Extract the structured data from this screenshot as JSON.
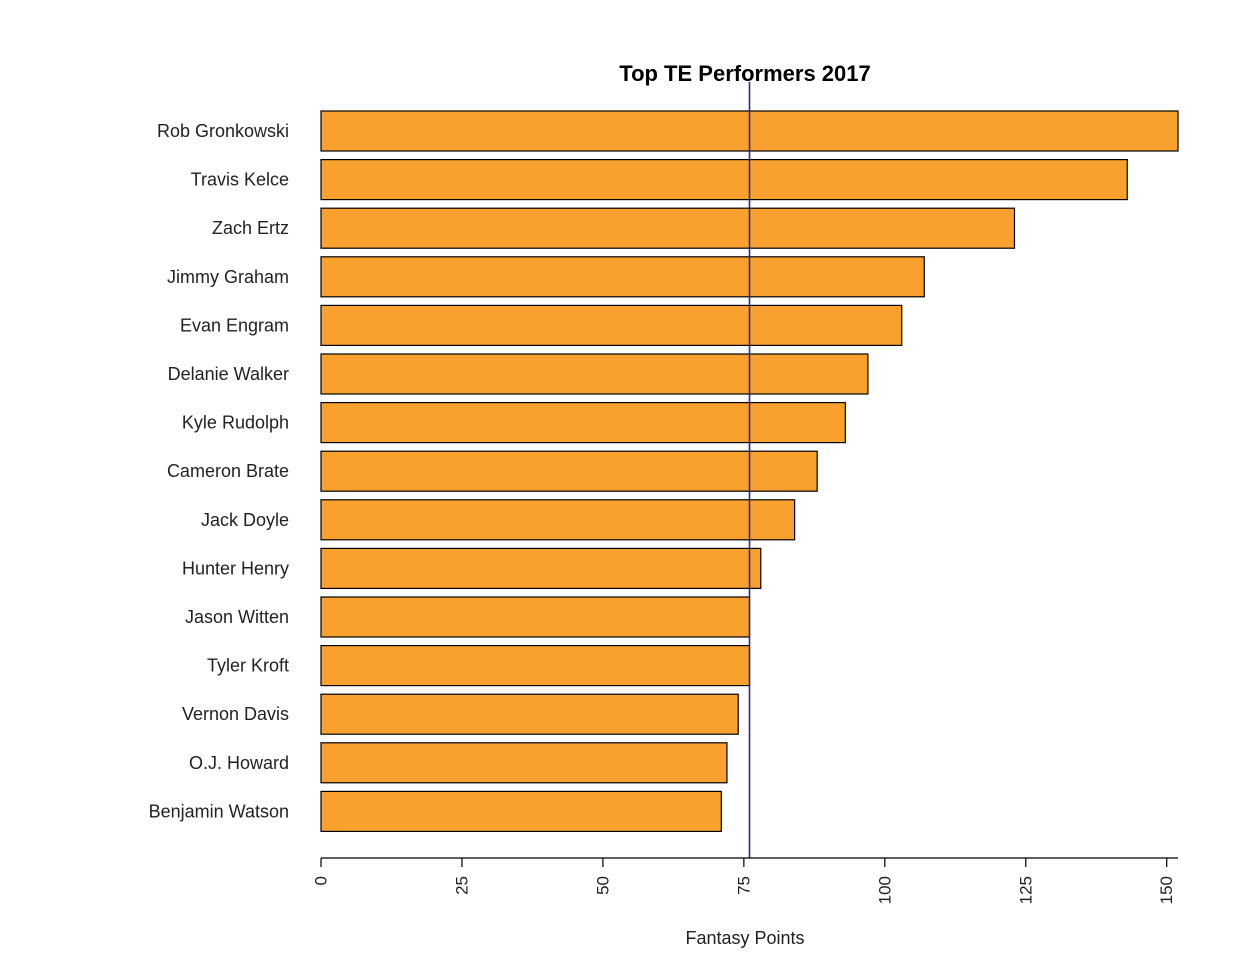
{
  "chart_data": {
    "type": "bar",
    "orientation": "horizontal",
    "title": "Top TE Performers 2017",
    "xlabel": "Fantasy Points",
    "ylabel": "",
    "categories": [
      "Rob Gronkowski",
      "Travis Kelce",
      "Zach Ertz",
      "Jimmy Graham",
      "Evan Engram",
      "Delanie Walker",
      "Kyle Rudolph",
      "Cameron Brate",
      "Jack Doyle",
      "Hunter Henry",
      "Jason Witten",
      "Tyler Kroft",
      "Vernon Davis",
      "O.J. Howard",
      "Benjamin Watson"
    ],
    "values": [
      152,
      143,
      123,
      107,
      103,
      97,
      93,
      88,
      84,
      78,
      76,
      76,
      74,
      72,
      71
    ],
    "xlim": [
      0,
      152
    ],
    "xticks": [
      0,
      25,
      50,
      75,
      100,
      125,
      150
    ],
    "reference_line": {
      "x": 76,
      "color": "#2a2a8c"
    },
    "bar_color": "#f9a12e",
    "bar_edge_color": "#000000",
    "grid": false,
    "legend": "none"
  }
}
